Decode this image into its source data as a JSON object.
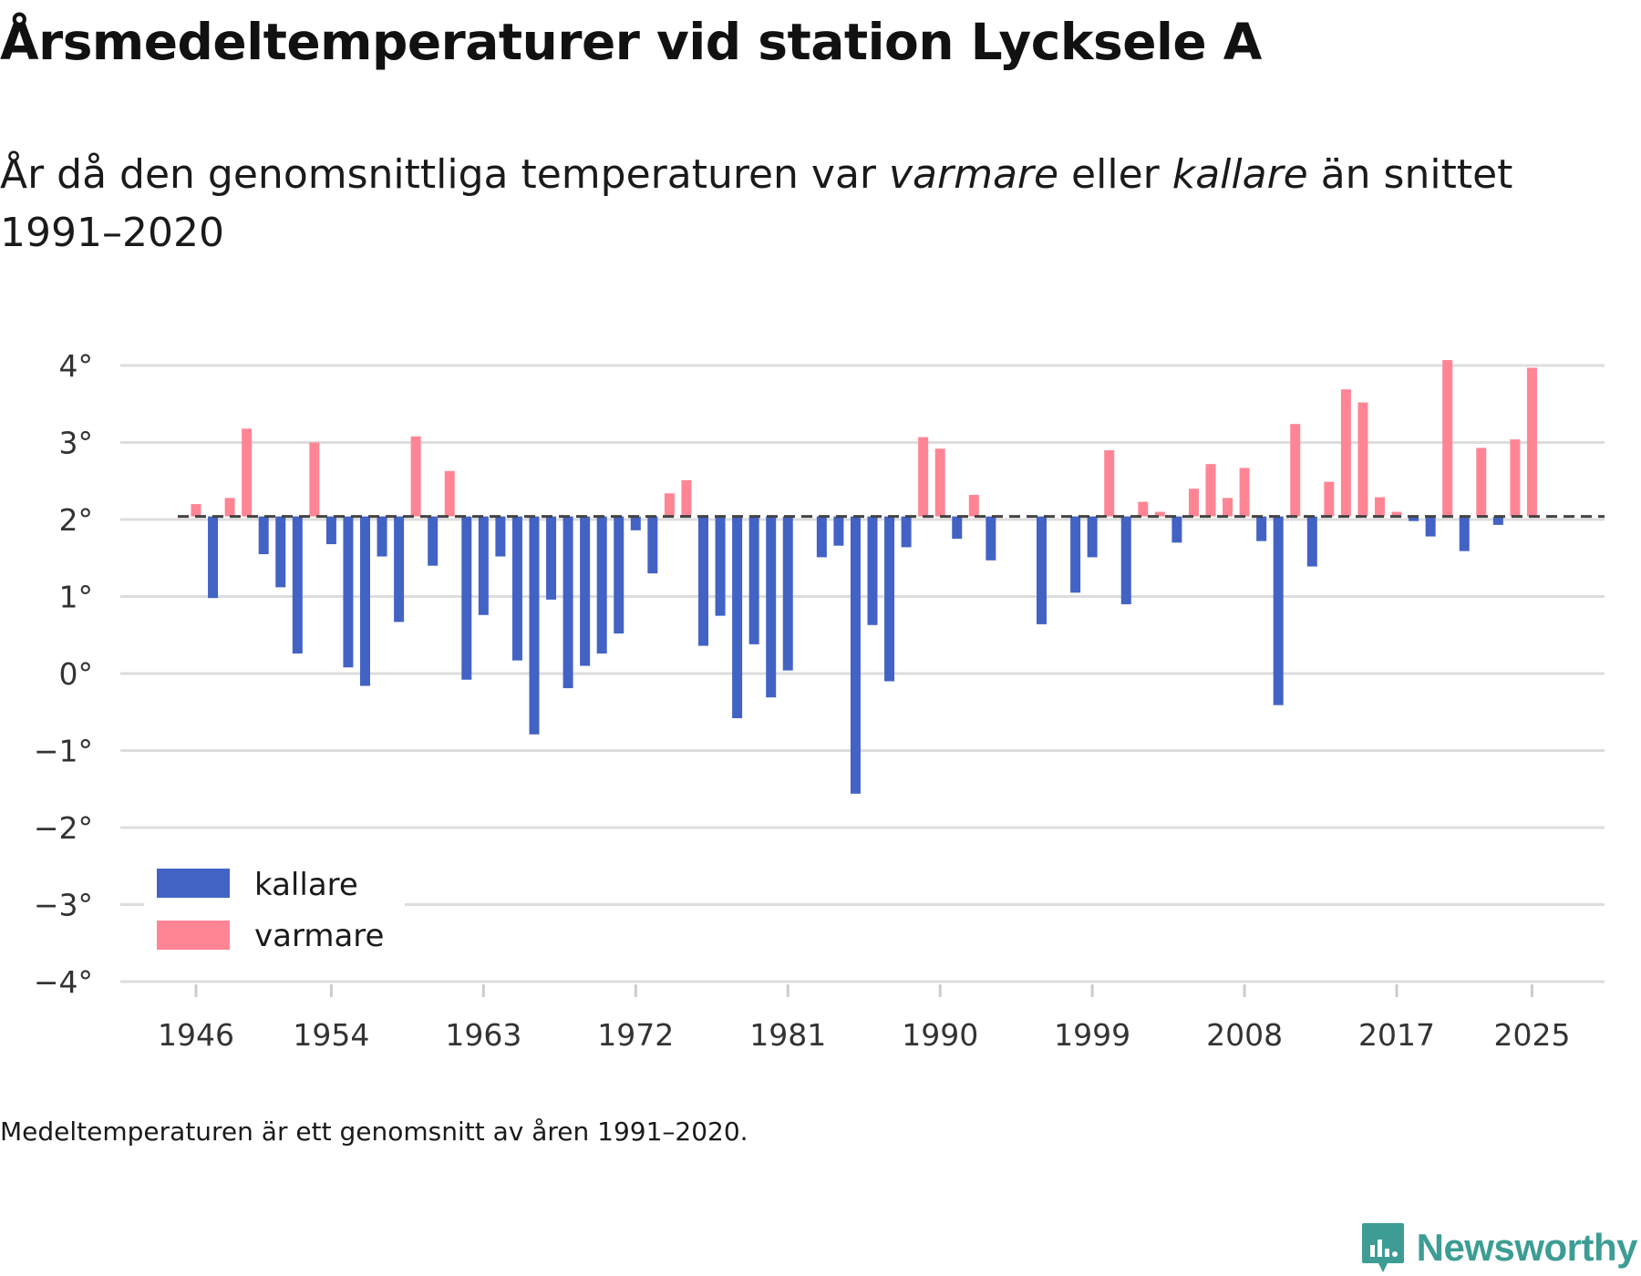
{
  "title": "Årsmedeltemperaturer vid station Lycksele A",
  "subtitle": {
    "part1": "År då den genomsnittliga temperaturen var ",
    "warm_word": "varmare",
    "part2": " eller ",
    "cold_word": "kallare",
    "part3": " än snittet 1991–2020"
  },
  "note": "Medeltemperaturen är ett genomsnitt av åren 1991–2020.",
  "brand": {
    "name": "Newsworthy"
  },
  "colors": {
    "cold": "#4263c4",
    "warm": "#ff8594",
    "grid": "#dddddd",
    "reference": "#444444",
    "brand": "#3d9d94"
  },
  "legend": {
    "cold_label": "kallare",
    "warm_label": "varmare"
  },
  "chart_data": {
    "type": "bar",
    "baseline": 2.04,
    "ylim": [
      -4,
      4.2
    ],
    "y_ticks": [
      -4,
      -3,
      -2,
      -1,
      0,
      1,
      2,
      3,
      4
    ],
    "y_tick_labels": [
      "−4°",
      "−3°",
      "−2°",
      "−1°",
      "0°",
      "1°",
      "2°",
      "3°",
      "4°"
    ],
    "x_ticks": [
      1946,
      1954,
      1963,
      1972,
      1981,
      1990,
      1999,
      2008,
      2017,
      2025
    ],
    "x_tick_labels": [
      "1946",
      "1954",
      "1963",
      "1972",
      "1981",
      "1990",
      "1999",
      "2008",
      "2017",
      "2025"
    ],
    "series": [
      {
        "name": "Årsmedeltemperatur",
        "years": [
          1946,
          1947,
          1948,
          1949,
          1950,
          1951,
          1952,
          1953,
          1954,
          1955,
          1956,
          1957,
          1958,
          1959,
          1960,
          1961,
          1962,
          1963,
          1964,
          1965,
          1966,
          1967,
          1968,
          1969,
          1970,
          1971,
          1972,
          1973,
          1974,
          1975,
          1976,
          1977,
          1978,
          1979,
          1980,
          1981,
          1982,
          1983,
          1984,
          1985,
          1986,
          1987,
          1988,
          1989,
          1990,
          1991,
          1992,
          1993,
          1994,
          1995,
          1996,
          1997,
          1998,
          1999,
          2000,
          2001,
          2002,
          2003,
          2004,
          2005,
          2006,
          2007,
          2008,
          2009,
          2010,
          2011,
          2012,
          2013,
          2014,
          2015,
          2016,
          2017,
          2018,
          2019,
          2020,
          2021,
          2022,
          2023,
          2024,
          2025
        ],
        "values": [
          2.2,
          0.98,
          2.28,
          3.18,
          1.55,
          1.12,
          0.26,
          3.0,
          1.68,
          0.08,
          -0.16,
          1.52,
          0.67,
          3.08,
          1.4,
          2.63,
          -0.08,
          0.76,
          1.52,
          0.17,
          -0.79,
          0.96,
          -0.19,
          0.1,
          0.26,
          0.52,
          1.86,
          1.3,
          2.34,
          2.51,
          0.36,
          0.75,
          -0.58,
          0.38,
          -0.31,
          0.04,
          null,
          1.51,
          1.66,
          -1.56,
          0.63,
          -0.1,
          1.64,
          3.07,
          2.92,
          1.75,
          2.32,
          1.47,
          null,
          null,
          0.64,
          null,
          1.05,
          1.51,
          2.9,
          0.9,
          2.23,
          2.1,
          1.7,
          2.4,
          2.72,
          2.28,
          2.67,
          1.72,
          -0.41,
          3.24,
          1.39,
          2.49,
          3.69,
          3.52,
          2.29,
          2.1,
          1.98,
          1.78,
          4.07,
          1.59,
          2.93,
          1.93,
          3.04,
          3.97
        ]
      }
    ]
  }
}
